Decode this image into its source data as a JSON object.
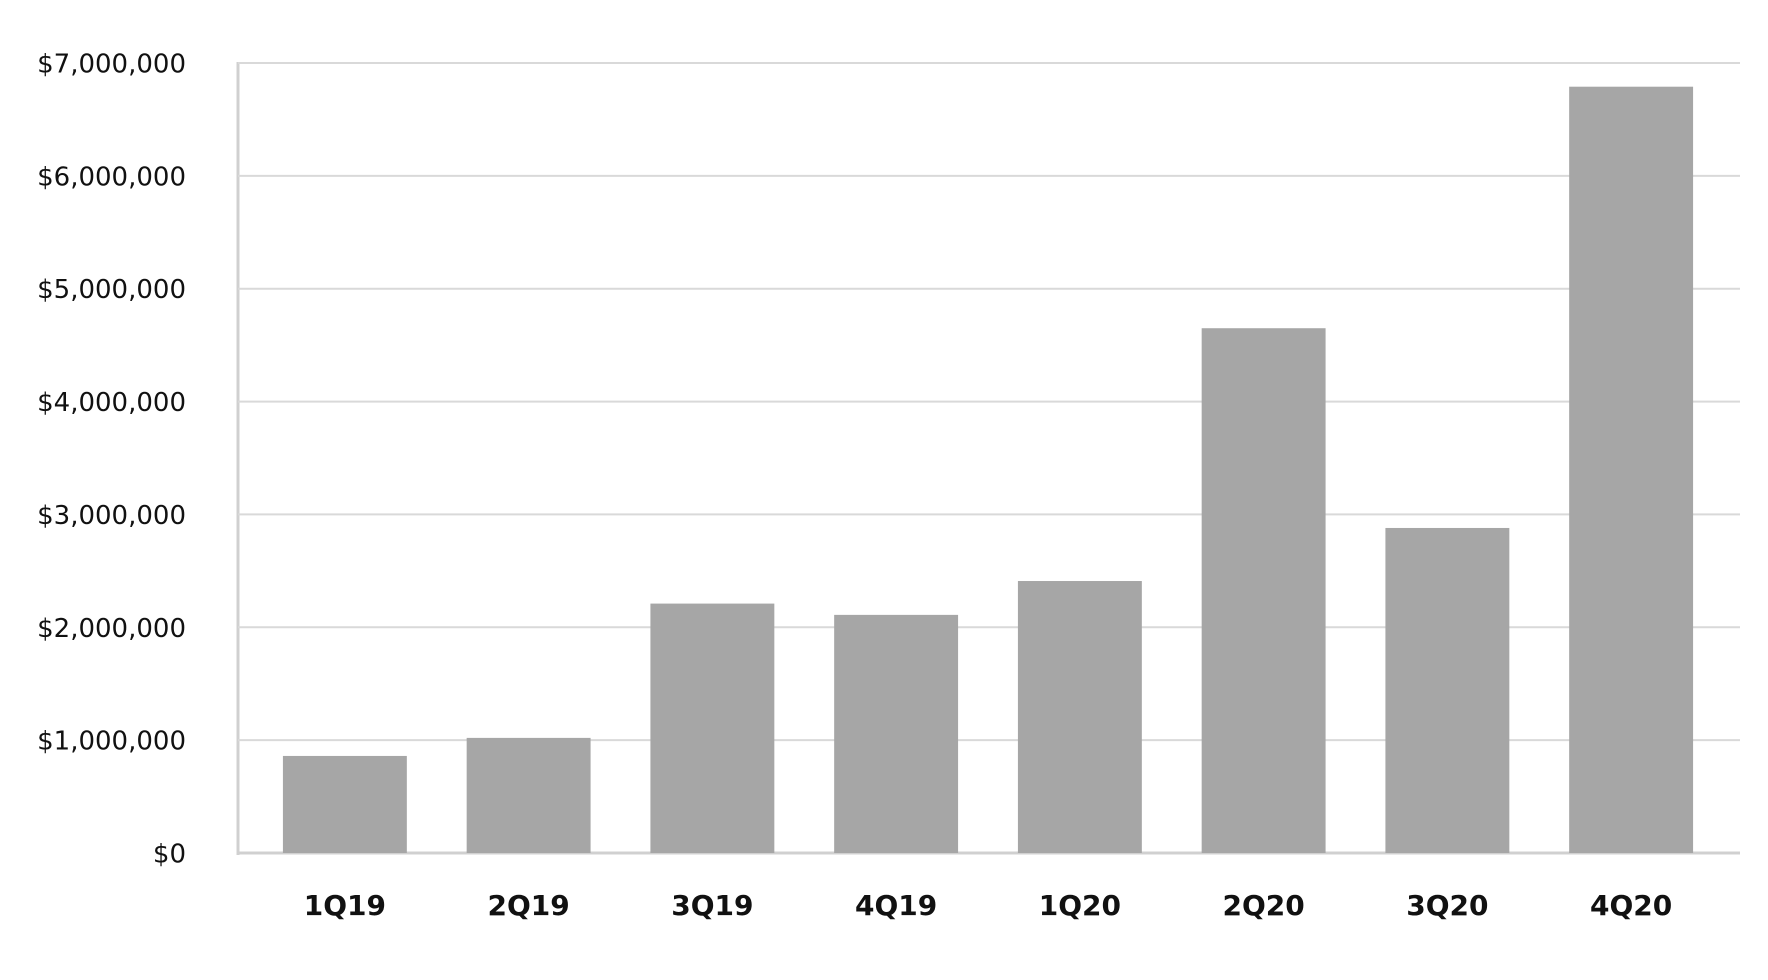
{
  "chart_data": {
    "type": "bar",
    "categories": [
      "1Q19",
      "2Q19",
      "3Q19",
      "4Q19",
      "1Q20",
      "2Q20",
      "3Q20",
      "4Q20"
    ],
    "values": [
      860000,
      1020000,
      2210000,
      2110000,
      2410000,
      4650000,
      2880000,
      6790000
    ],
    "color": "#a6a6a6",
    "ylim": [
      0,
      7000000
    ],
    "yticks": [
      {
        "value": 0,
        "label": "$0"
      },
      {
        "value": 1000000,
        "label": "$1,000,000"
      },
      {
        "value": 2000000,
        "label": "$2,000,000"
      },
      {
        "value": 3000000,
        "label": "$3,000,000"
      },
      {
        "value": 4000000,
        "label": "$4,000,000"
      },
      {
        "value": 5000000,
        "label": "$5,000,000"
      },
      {
        "value": 6000000,
        "label": "$6,000,000"
      },
      {
        "value": 7000000,
        "label": "$7,000,000"
      }
    ],
    "grid": true
  }
}
